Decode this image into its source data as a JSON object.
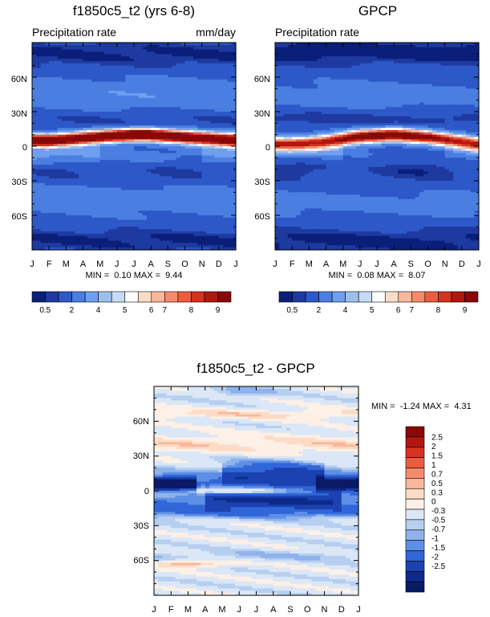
{
  "chart_data": [
    {
      "type": "heatmap",
      "title": "f1850c5_t2 (yrs 6-8)",
      "subtitle_left": "Precipitation rate",
      "subtitle_right": "mm/day",
      "x_ticks": [
        "J",
        "F",
        "M",
        "A",
        "M",
        "J",
        "J",
        "A",
        "S",
        "O",
        "N",
        "D",
        "J"
      ],
      "y_ticks": [
        "60N",
        "30N",
        "0",
        "30S",
        "60S"
      ],
      "y_tick_values": [
        60,
        30,
        0,
        -30,
        -60
      ],
      "ylim": [
        -90,
        90
      ],
      "min_value": "0.10",
      "max_value": "9.44",
      "stats_label": "MIN =  0.10 MAX =  9.44",
      "colorbar_labels": [
        "0.5",
        "2",
        "4",
        "5",
        "6",
        "7",
        "8",
        "9"
      ],
      "itcz_peak_lat_by_month": [
        5,
        5,
        6,
        7,
        8,
        9,
        10,
        10,
        9,
        8,
        7,
        6,
        5
      ],
      "itcz_peak_value_by_month": [
        9.0,
        8.8,
        8.6,
        8.6,
        8.8,
        9.1,
        9.4,
        9.3,
        9.1,
        8.9,
        8.8,
        8.9,
        9.0
      ]
    },
    {
      "type": "heatmap",
      "title": "GPCP",
      "subtitle_left": "Precipitation rate",
      "subtitle_right": "",
      "x_ticks": [
        "J",
        "F",
        "M",
        "A",
        "M",
        "J",
        "J",
        "A",
        "S",
        "O",
        "N",
        "D",
        "J"
      ],
      "y_ticks": [
        "60N",
        "30N",
        "0",
        "30S",
        "60S"
      ],
      "y_tick_values": [
        60,
        30,
        0,
        -30,
        -60
      ],
      "ylim": [
        -90,
        90
      ],
      "min_value": "0.08",
      "max_value": "8.07",
      "stats_label": "MIN =  0.08 MAX =  8.07",
      "colorbar_labels": [
        "0.5",
        "2",
        "4",
        "5",
        "6",
        "7",
        "8",
        "9"
      ],
      "itcz_peak_lat_by_month": [
        2,
        2,
        3,
        4,
        6,
        8,
        9,
        10,
        9,
        8,
        6,
        4,
        2
      ],
      "itcz_peak_value_by_month": [
        6.5,
        6.4,
        6.6,
        7.0,
        7.5,
        7.9,
        8.07,
        8.0,
        7.8,
        7.4,
        6.9,
        6.6,
        6.5
      ]
    },
    {
      "type": "heatmap",
      "title": "f1850c5_t2 - GPCP",
      "x_ticks": [
        "J",
        "F",
        "M",
        "A",
        "M",
        "J",
        "J",
        "A",
        "S",
        "O",
        "N",
        "D",
        "J"
      ],
      "y_ticks": [
        "60N",
        "30N",
        "0",
        "30S",
        "60S"
      ],
      "y_tick_values": [
        60,
        30,
        0,
        -30,
        -60
      ],
      "ylim": [
        -90,
        90
      ],
      "min_value": "-1.24",
      "max_value": "4.31",
      "stats_label": "MIN =  -1.24 MAX =  4.31",
      "colorbar_labels": [
        "2.5",
        "2",
        "1.5",
        "1",
        "0.7",
        "0.5",
        "0.3",
        "0",
        "-0.3",
        "-0.5",
        "-0.7",
        "-1",
        "-1.5",
        "-2",
        "-2.5"
      ]
    }
  ],
  "colors": {
    "precip": [
      "#0a1f7a",
      "#1e3aa0",
      "#2d58c8",
      "#4a7ee0",
      "#6f9ff0",
      "#9ebfeb",
      "#c6dbf5",
      "#ffffff",
      "#fcdcc6",
      "#f9b89a",
      "#f48b6b",
      "#ec5d3f",
      "#d8311f",
      "#b2160f",
      "#8a0808"
    ],
    "diff": [
      "#8a0808",
      "#b2160f",
      "#d8311f",
      "#ec5d3f",
      "#f48b6b",
      "#f9b89a",
      "#fcdcc6",
      "#fdf0e6",
      "#dbe7f6",
      "#b6cff0",
      "#8fb2ec",
      "#5e8fe6",
      "#3066d8",
      "#1b42b0",
      "#0d2a8a",
      "#0a1a66"
    ]
  }
}
